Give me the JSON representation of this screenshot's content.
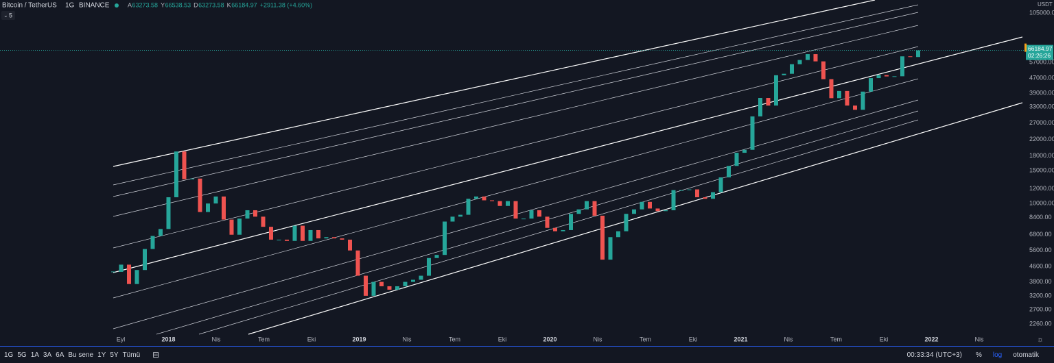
{
  "header": {
    "symbol": "Bitcoin / TetherUS",
    "interval": "1G",
    "exchange": "BINANCE",
    "ohlc": [
      {
        "label": "A",
        "value": "63273.58"
      },
      {
        "label": "Y",
        "value": "66538.53"
      },
      {
        "label": "D",
        "value": "63273.58"
      },
      {
        "label": "K",
        "value": "66184.97"
      }
    ],
    "change": "+2911.38 (+4.60%)",
    "indicator_count": "5"
  },
  "chart_data": {
    "type": "candlestick",
    "log_scale": true,
    "up_color": "#26a69a",
    "down_color": "#ef5350",
    "closes": [
      4300,
      4700,
      3700,
      4400,
      5700,
      6700,
      7300,
      10800,
      19000,
      13500,
      13600,
      9000,
      10000,
      10900,
      8200,
      6800,
      8300,
      9200,
      8500,
      7500,
      6400,
      6400,
      6300,
      7600,
      6300,
      7200,
      6500,
      6600,
      6500,
      6400,
      5600,
      4100,
      3200,
      3800,
      3600,
      3450,
      3600,
      3800,
      3900,
      4100,
      5100,
      5300,
      8000,
      8500,
      8700,
      10600,
      10900,
      10400,
      10300,
      9700,
      10300,
      8300,
      8300,
      9200,
      8500,
      7400,
      7100,
      7200,
      8800,
      9300,
      10300,
      8600,
      5000,
      6600,
      7100,
      8800,
      9300,
      10200,
      9400,
      9100,
      9200,
      11800,
      11800,
      11900,
      10800,
      10600,
      11500,
      13800,
      15900,
      18700,
      19400,
      29300,
      36800,
      33500,
      48700,
      49600,
      55800,
      58800,
      63200,
      57800,
      46400,
      36700,
      40100,
      33500,
      31800,
      39800,
      47000,
      48800,
      48000,
      48100,
      61500,
      61000,
      66184.97
    ],
    "ylim": [
      1991,
      123300
    ],
    "yticks": [
      {
        "value": 105000,
        "label": "105000.00"
      },
      {
        "value": 57000,
        "label": "57000.00"
      },
      {
        "value": 47000,
        "label": "47000.00"
      },
      {
        "value": 39000,
        "label": "39000.00"
      },
      {
        "value": 33000,
        "label": "33000.00"
      },
      {
        "value": 27000,
        "label": "27000.00"
      },
      {
        "value": 22000,
        "label": "22000.00"
      },
      {
        "value": 18000,
        "label": "18000.00"
      },
      {
        "value": 15000,
        "label": "15000.00"
      },
      {
        "value": 12000,
        "label": "12000.00"
      },
      {
        "value": 10000,
        "label": "10000.00"
      },
      {
        "value": 8400,
        "label": "8400.00"
      },
      {
        "value": 6800,
        "label": "6800.00"
      },
      {
        "value": 5600,
        "label": "5600.00"
      },
      {
        "value": 4600,
        "label": "4600.00"
      },
      {
        "value": 3800,
        "label": "3800.00"
      },
      {
        "value": 3200,
        "label": "3200.00"
      },
      {
        "value": 2700,
        "label": "2700.00"
      },
      {
        "value": 2260,
        "label": "2260.00"
      }
    ],
    "currency": "USDT",
    "countdown": "02:26:26",
    "time_labels": [
      "Eyl",
      "2018",
      "Nis",
      "Tem",
      "Eki",
      "2019",
      "Nis",
      "Tem",
      "Eki",
      "2020",
      "Nis",
      "Tem",
      "Eki",
      "2021",
      "Nis",
      "Tem",
      "Eki",
      "2022",
      "Nis"
    ]
  },
  "toolbar": {
    "ranges": [
      "1G",
      "5G",
      "1A",
      "3A",
      "6A",
      "Bu sene",
      "1Y",
      "5Y",
      "Tümü"
    ],
    "clock": "00:33:34 (UTC+3)",
    "percent": "%",
    "log": "log",
    "auto": "otomatik"
  }
}
